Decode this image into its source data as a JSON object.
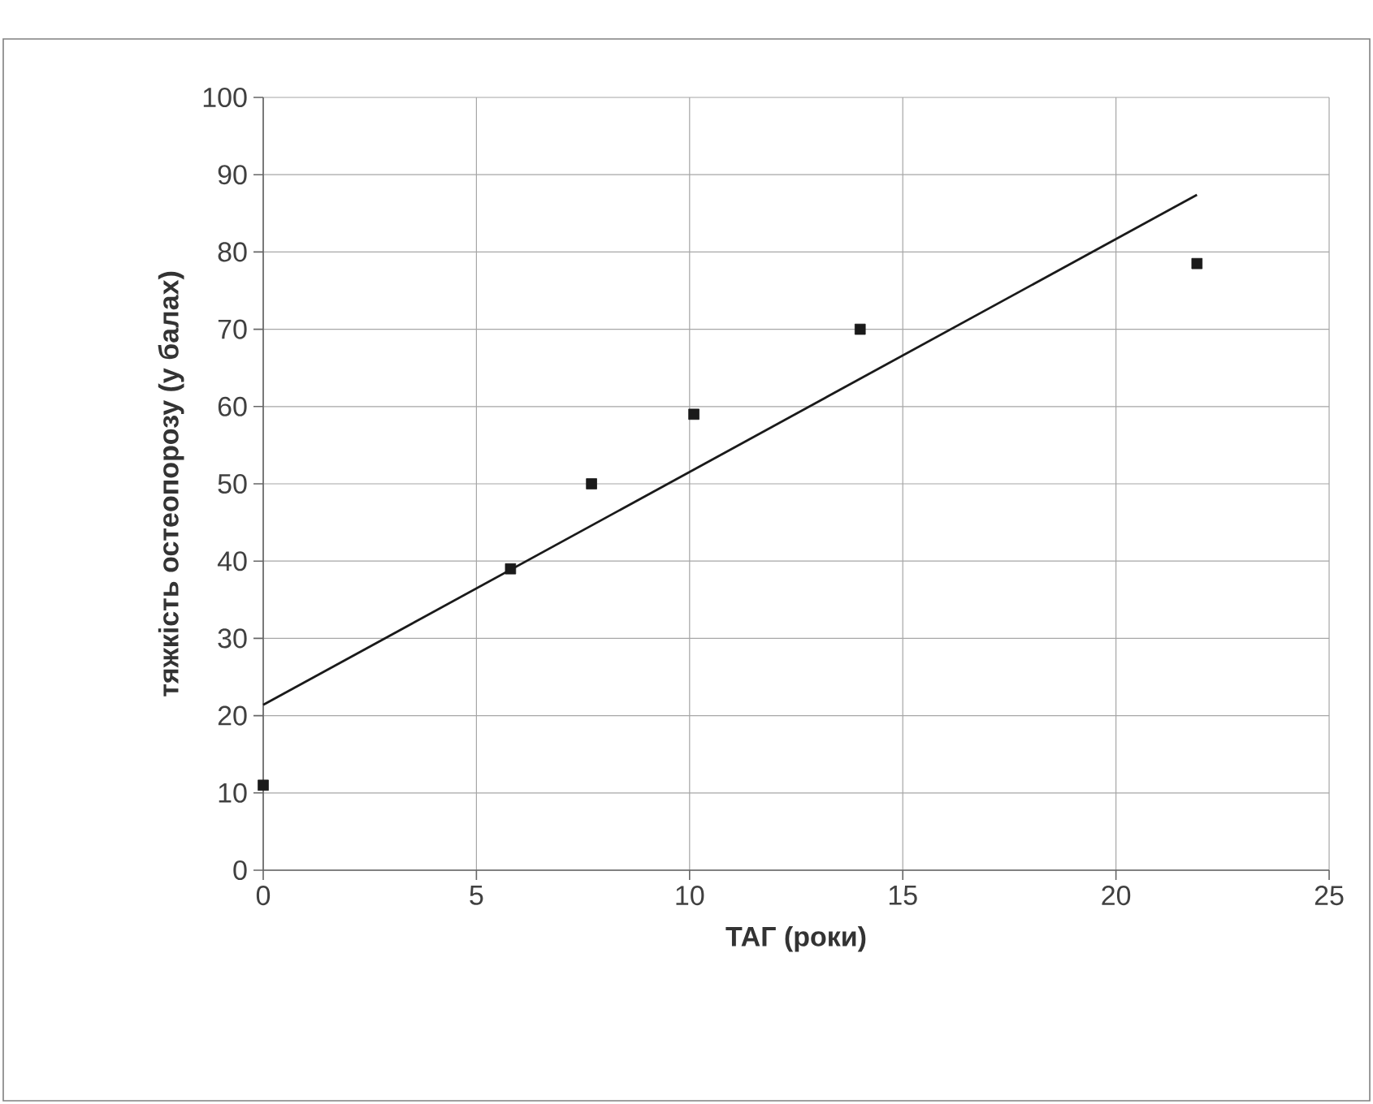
{
  "chart_data": {
    "type": "scatter",
    "xlabel": "ТАГ (роки)",
    "ylabel": "тяжкість остеопорозу (у балах)",
    "xlim": [
      0,
      25
    ],
    "xticks": [
      0,
      5,
      10,
      15,
      20,
      25
    ],
    "ylim": [
      0,
      100
    ],
    "yticks": [
      0,
      10,
      20,
      30,
      40,
      50,
      60,
      70,
      80,
      90,
      100
    ],
    "grid": true,
    "marker": "square",
    "series": [
      {
        "color": "#1a1a1a",
        "x": [
          0,
          5.8,
          7.7,
          10.1,
          14.0,
          21.9
        ],
        "values": [
          11,
          39,
          50,
          59,
          70,
          78.5
        ]
      },
      {
        "type": "line",
        "color": "#1a1a1a",
        "x": [
          0,
          21.9
        ],
        "values": [
          21.4,
          87.4
        ],
        "marker": "none",
        "line_style": "solid"
      }
    ]
  }
}
